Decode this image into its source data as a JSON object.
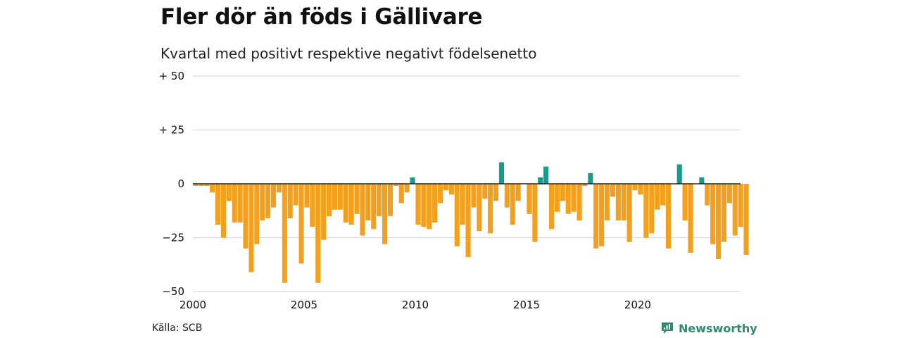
{
  "header": {
    "title": "Fler dör än föds i Gällivare",
    "subtitle": "Kvartal med positivt respektive negativt födelsenetto"
  },
  "footer": {
    "source": "Källa: SCB",
    "brand": "Newsworthy",
    "brand_icon": "newsworthy-logo-icon"
  },
  "colors": {
    "positive": "#1a9a8a",
    "negative": "#f5a01c",
    "grid": "#d9d9d9",
    "zero_line": "#222222"
  },
  "chart_data": {
    "type": "bar",
    "title": "Fler dör än föds i Gällivare",
    "subtitle": "Kvartal med positivt respektive negativt födelsenetto",
    "x_start_year": 2000,
    "x_ticks": [
      2000,
      2005,
      2010,
      2015,
      2020
    ],
    "x_tick_labels": [
      "2000",
      "2005",
      "2010",
      "2015",
      "2020"
    ],
    "y_ticks": [
      50,
      25,
      0,
      -25,
      -50
    ],
    "y_tick_labels": [
      "+ 50",
      "+ 25",
      "0",
      "−25",
      "−50"
    ],
    "ylim": [
      -50,
      50
    ],
    "grid": true,
    "legend": "none",
    "series": [
      {
        "values": [
          -1,
          -1,
          -1,
          -4,
          -19,
          -25,
          -8,
          -18,
          -18,
          -30,
          -41,
          -28,
          -17,
          -16,
          -11,
          -4,
          -46,
          -16,
          -10,
          -37,
          -11,
          -20,
          -46,
          -26,
          -15,
          -12,
          -12,
          -18,
          -19,
          -14,
          -24,
          -17,
          -21,
          -15,
          -28,
          -15,
          -1,
          -9,
          -4,
          3,
          -19,
          -20,
          -21,
          -18,
          -9,
          -3,
          -5,
          -29,
          -19,
          -34,
          -11,
          -22,
          -7,
          -23,
          -8,
          10,
          -11,
          -19,
          -8,
          0,
          -14,
          -27,
          3,
          8,
          -21,
          -13,
          -8,
          -14,
          -13,
          -17,
          -1,
          5,
          -30,
          -29,
          -17,
          -6,
          -17,
          -17,
          -27,
          -3,
          -5,
          -25,
          -23,
          -12,
          -10,
          -30,
          0,
          9,
          -17,
          -32,
          0,
          3,
          -10,
          -28,
          -35,
          -27,
          -9,
          -24,
          -20,
          -33
        ]
      }
    ]
  }
}
